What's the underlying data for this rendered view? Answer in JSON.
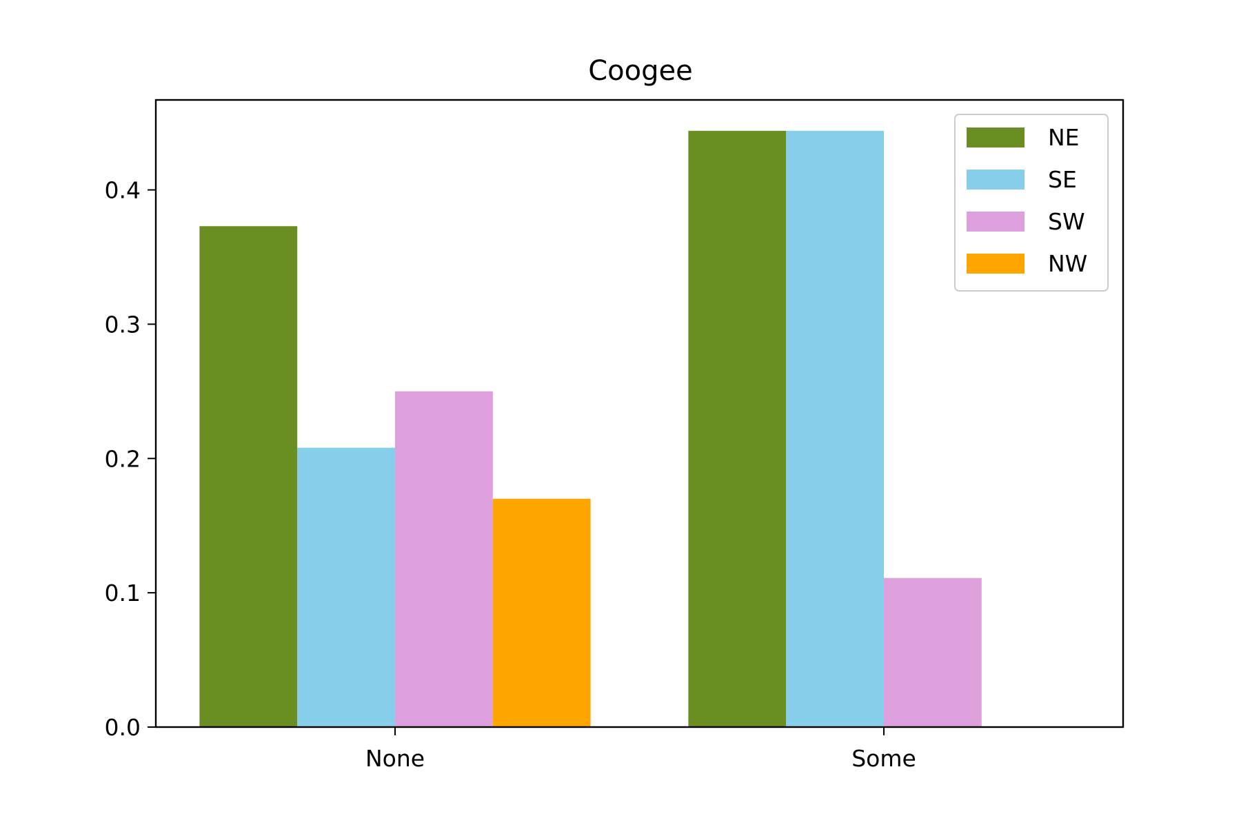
{
  "chart_data": {
    "type": "bar",
    "title": "Coogee",
    "xlabel": "",
    "ylabel": "",
    "categories": [
      "None",
      "Some"
    ],
    "series": [
      {
        "name": "NE",
        "color": "#6b8e23",
        "values": [
          0.373,
          0.444
        ]
      },
      {
        "name": "SE",
        "color": "#87ceeb",
        "values": [
          0.208,
          0.444
        ]
      },
      {
        "name": "SW",
        "color": "#dda0dd",
        "values": [
          0.25,
          0.111
        ]
      },
      {
        "name": "NW",
        "color": "#ffa500",
        "values": [
          0.17,
          0.0
        ]
      }
    ],
    "ylim": [
      0,
      0.467
    ],
    "yticks": [
      0.0,
      0.1,
      0.2,
      0.3,
      0.4
    ],
    "ytick_labels": [
      "0.0",
      "0.1",
      "0.2",
      "0.3",
      "0.4"
    ],
    "grid": false,
    "legend_position": "top-right"
  }
}
